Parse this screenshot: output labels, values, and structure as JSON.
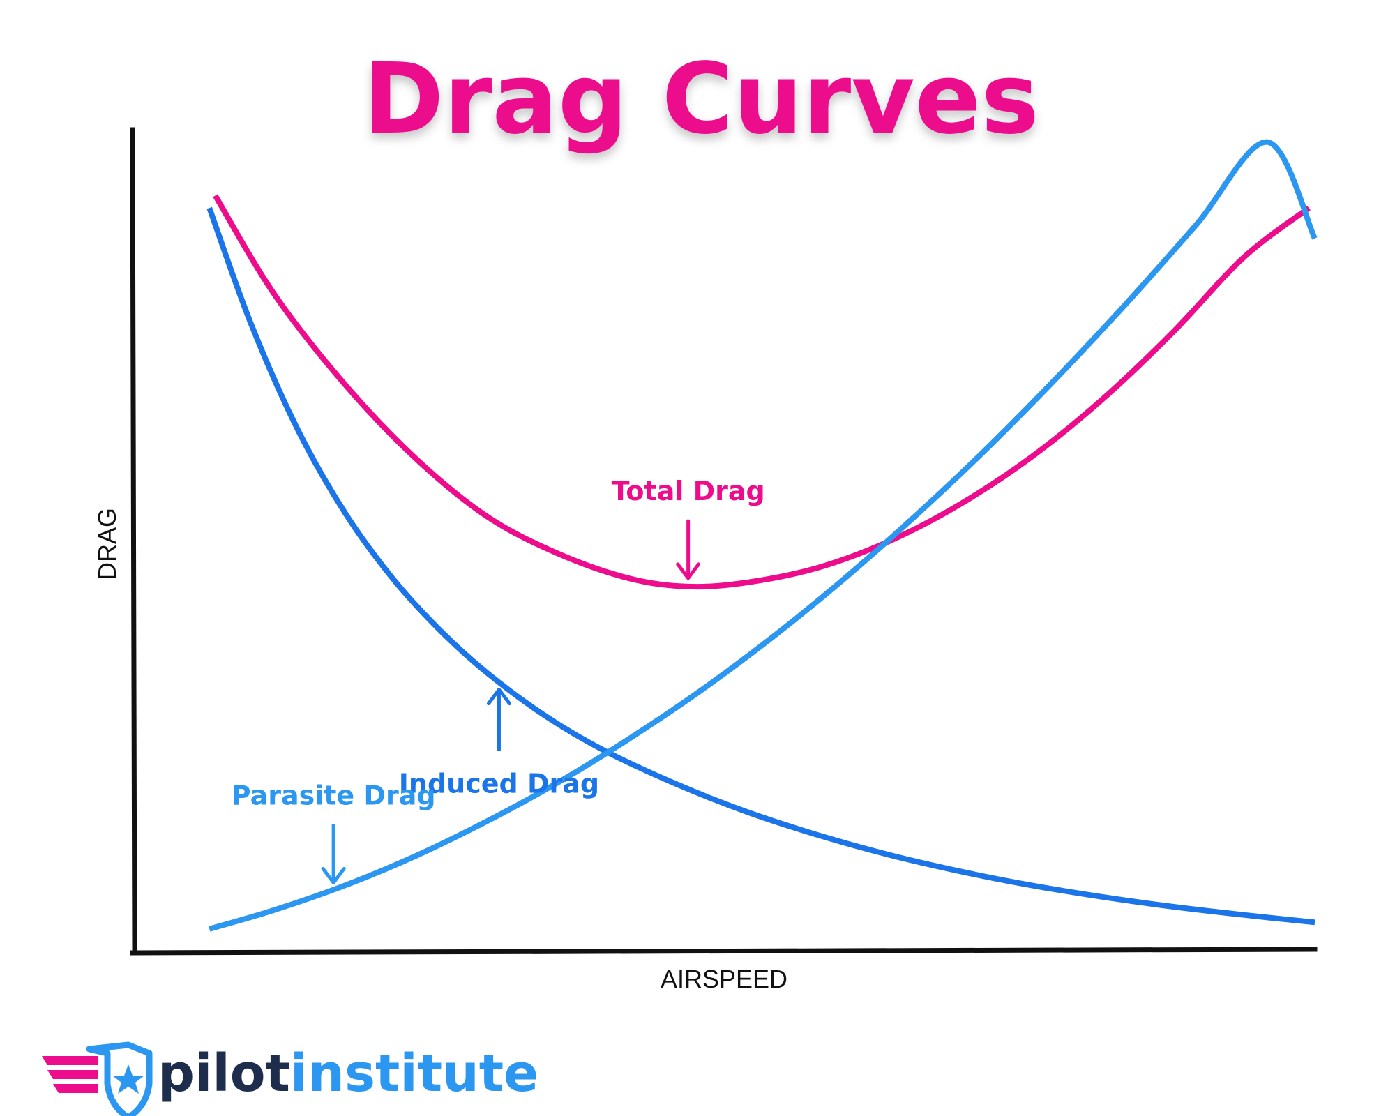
{
  "chart_data": {
    "type": "line",
    "title": "Drag Curves",
    "xlabel": "AIRSPEED",
    "ylabel": "DRAG",
    "xlim": [
      0,
      100
    ],
    "ylim": [
      0,
      100
    ],
    "grid": false,
    "legend": "none",
    "series": [
      {
        "name": "Total Drag",
        "color": "#ec0c8c",
        "x": [
          7,
          12,
          18,
          24,
          30,
          36,
          42,
          47,
          52,
          58,
          64,
          70,
          76,
          82,
          88,
          94,
          99.5
        ],
        "y": [
          92,
          80,
          69,
          60,
          53,
          48.5,
          45.5,
          44.5,
          45,
          46.8,
          50,
          54.5,
          60.2,
          67.2,
          75.4,
          84.5,
          90.5
        ]
      },
      {
        "name": "Induced Drag",
        "color": "#1b74e8",
        "x": [
          6.5,
          10,
          14,
          18,
          22,
          26,
          30,
          35,
          40,
          46,
          52,
          58,
          64,
          70,
          76,
          82,
          88,
          94,
          100
        ],
        "y": [
          90.5,
          76.5,
          63.5,
          53.4,
          45.5,
          39.2,
          34,
          28.7,
          24.5,
          20.5,
          17.1,
          14.3,
          11.9,
          9.9,
          8.2,
          6.8,
          5.6,
          4.6,
          3.7
        ]
      },
      {
        "name": "Parasite Drag",
        "color": "#2c97f0",
        "x": [
          6.5,
          12,
          18,
          24,
          30,
          36,
          42,
          48,
          54,
          60,
          66,
          72,
          78,
          84,
          90,
          96,
          100
        ],
        "y": [
          2.9,
          5.2,
          8.2,
          11.8,
          16,
          20.7,
          26,
          31.8,
          38.2,
          45.2,
          52.8,
          60.9,
          69.6,
          78.8,
          88.5,
          98.5,
          86.8
        ]
      }
    ],
    "annotations": [
      {
        "text": "Total Drag",
        "series": "Total Drag",
        "color": "#ec0c8c",
        "point_x": 47,
        "point_y": 44.5,
        "arrow": "down"
      },
      {
        "text": "Induced Drag",
        "series": "Induced Drag",
        "color": "#1b74e8",
        "point_x": 31,
        "point_y": 33,
        "arrow": "up"
      },
      {
        "text": "Parasite Drag",
        "series": "Parasite Drag",
        "color": "#2c97f0",
        "point_x": 17,
        "point_y": 7.5,
        "arrow": "down"
      }
    ]
  },
  "logo": {
    "part1": "pilot",
    "part2": "institute",
    "part1_color": "#1f2d4d",
    "part2_color": "#2c97f0",
    "icon": "star-shield-wings-icon"
  },
  "colors": {
    "title": "#ec0c8c",
    "axis": "#111111"
  }
}
